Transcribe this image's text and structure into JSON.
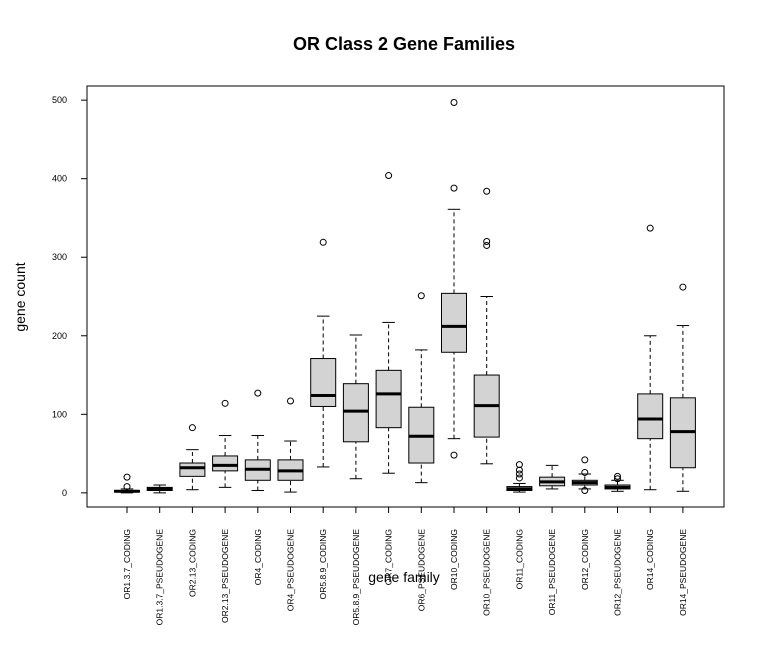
{
  "chart_data": {
    "type": "boxplot",
    "title": "OR Class 2 Gene Families",
    "xlabel": "gene family",
    "ylabel": "gene count",
    "ylim": [
      -18,
      518
    ],
    "yticks": [
      0,
      100,
      200,
      300,
      400,
      500
    ],
    "grid": false,
    "legend": "none",
    "box_color": "#d3d3d3",
    "categories": [
      "OR1.3.7_CODING",
      "OR1.3.7_PSEUDOGENE",
      "OR2.13_CODING",
      "OR2.13_PSEUDOGENE",
      "OR4_CODING",
      "OR4_PSEUDOGENE",
      "OR5.8.9_CODING",
      "OR5.8.9_PSEUDOGENE",
      "OR7_CODING",
      "OR6_PSEUDOGENE",
      "OR10_CODING",
      "OR10_PSEUDOGENE",
      "OR11_CODING",
      "OR11_PSEUDOGENE",
      "OR12_CODING",
      "OR12_PSEUDOGENE",
      "OR14_CODING",
      "OR14_PSEUDOGENE"
    ],
    "boxes": [
      {
        "min": 0,
        "q1": 1,
        "median": 2,
        "q3": 3,
        "max": 5,
        "outliers": [
          8,
          20
        ]
      },
      {
        "min": 0,
        "q1": 3,
        "median": 5,
        "q3": 7,
        "max": 10,
        "outliers": []
      },
      {
        "min": 4,
        "q1": 21,
        "median": 32,
        "q3": 38,
        "max": 55,
        "outliers": [
          83
        ]
      },
      {
        "min": 7,
        "q1": 28,
        "median": 35,
        "q3": 47,
        "max": 73,
        "outliers": [
          114
        ]
      },
      {
        "min": 3,
        "q1": 16,
        "median": 30,
        "q3": 42,
        "max": 73,
        "outliers": [
          127
        ]
      },
      {
        "min": 1,
        "q1": 16,
        "median": 28,
        "q3": 42,
        "max": 66,
        "outliers": [
          117
        ]
      },
      {
        "min": 33,
        "q1": 110,
        "median": 124,
        "q3": 171,
        "max": 225,
        "outliers": [
          319
        ]
      },
      {
        "min": 18,
        "q1": 65,
        "median": 104,
        "q3": 139,
        "max": 201,
        "outliers": []
      },
      {
        "min": 25,
        "q1": 83,
        "median": 126,
        "q3": 156,
        "max": 217,
        "outliers": [
          404
        ]
      },
      {
        "min": 13,
        "q1": 38,
        "median": 72,
        "q3": 109,
        "max": 182,
        "outliers": [
          251
        ]
      },
      {
        "min": 69,
        "q1": 179,
        "median": 212,
        "q3": 254,
        "max": 361,
        "outliers": [
          48,
          388,
          497
        ]
      },
      {
        "min": 37,
        "q1": 71,
        "median": 111,
        "q3": 150,
        "max": 250,
        "outliers": [
          315,
          320,
          384
        ]
      },
      {
        "min": 1,
        "q1": 3,
        "median": 5,
        "q3": 8,
        "max": 12,
        "outliers": [
          19,
          24,
          29,
          36
        ]
      },
      {
        "min": 5,
        "q1": 9,
        "median": 14,
        "q3": 20,
        "max": 35,
        "outliers": []
      },
      {
        "min": 5,
        "q1": 10,
        "median": 13,
        "q3": 16,
        "max": 24,
        "outliers": [
          3,
          26,
          42
        ]
      },
      {
        "min": 2,
        "q1": 5,
        "median": 7,
        "q3": 10,
        "max": 16,
        "outliers": [
          18,
          21
        ]
      },
      {
        "min": 4,
        "q1": 69,
        "median": 94,
        "q3": 126,
        "max": 200,
        "outliers": [
          337
        ]
      },
      {
        "min": 2,
        "q1": 32,
        "median": 78,
        "q3": 121,
        "max": 213,
        "outliers": [
          262
        ]
      }
    ]
  }
}
